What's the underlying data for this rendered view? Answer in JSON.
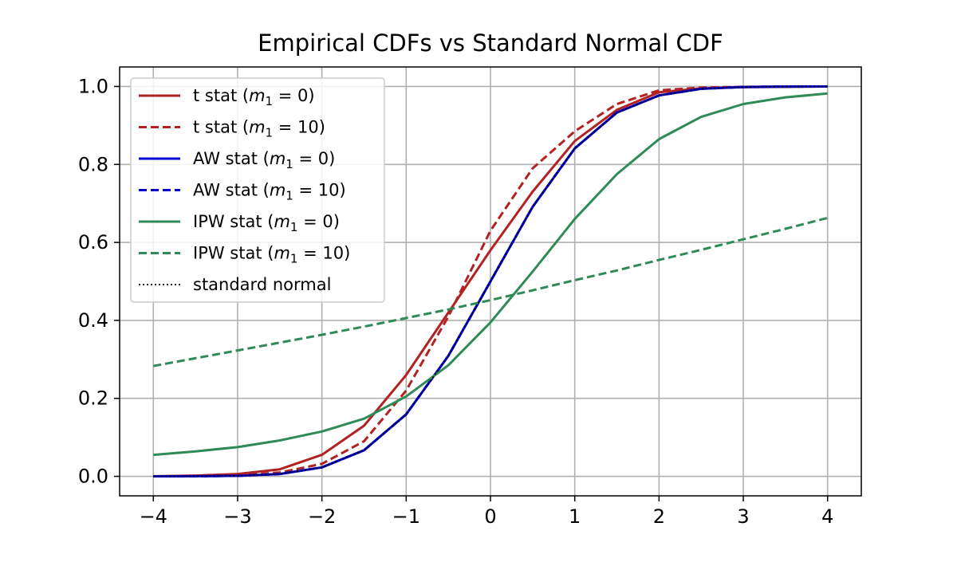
{
  "chart_data": {
    "type": "line",
    "title": "Empirical CDFs vs Standard Normal CDF",
    "xlabel": "",
    "ylabel": "",
    "xlim": [
      -4.4,
      4.4
    ],
    "ylim": [
      -0.05,
      1.05
    ],
    "grid": true,
    "legend_position": "upper-left",
    "x_ticks": [
      -4,
      -3,
      -2,
      -1,
      0,
      1,
      2,
      3,
      4
    ],
    "x_tick_labels": [
      "−4",
      "−3",
      "−2",
      "−1",
      "0",
      "1",
      "2",
      "3",
      "4"
    ],
    "y_ticks": [
      0.0,
      0.2,
      0.4,
      0.6,
      0.8,
      1.0
    ],
    "y_tick_labels": [
      "0.0",
      "0.2",
      "0.4",
      "0.6",
      "0.8",
      "1.0"
    ],
    "x": [
      -4,
      -3.5,
      -3,
      -2.5,
      -2,
      -1.5,
      -1,
      -0.5,
      0,
      0.5,
      1,
      1.5,
      2,
      2.5,
      3,
      3.5,
      4
    ],
    "series": [
      {
        "name": "t stat ($m_1 = 0$)",
        "label_prefix": "t stat (",
        "label_m": "m",
        "label_sub": "1",
        "label_eq": " = 0",
        "label_suffix": ")",
        "color": "#b22222",
        "style": "solid",
        "values": [
          0.0,
          0.002,
          0.006,
          0.018,
          0.055,
          0.13,
          0.26,
          0.42,
          0.58,
          0.73,
          0.86,
          0.94,
          0.985,
          0.995,
          0.998,
          0.999,
          1.0
        ]
      },
      {
        "name": "t stat ($m_1 = 10$)",
        "label_prefix": "t stat (",
        "label_m": "m",
        "label_sub": "1",
        "label_eq": " = 10",
        "label_suffix": ")",
        "color": "#b22222",
        "style": "dashed",
        "values": [
          0.0,
          0.001,
          0.003,
          0.01,
          0.032,
          0.09,
          0.22,
          0.41,
          0.63,
          0.79,
          0.885,
          0.955,
          0.99,
          0.997,
          0.999,
          0.9995,
          1.0
        ]
      },
      {
        "name": "AW stat ($m_1 = 0$)",
        "label_prefix": "AW stat (",
        "label_m": "m",
        "label_sub": "1",
        "label_eq": " = 0",
        "label_suffix": ")",
        "color": "#0000cd",
        "style": "solid",
        "values": [
          0.0,
          0.0002,
          0.0013,
          0.006,
          0.023,
          0.067,
          0.159,
          0.309,
          0.5,
          0.691,
          0.841,
          0.933,
          0.977,
          0.994,
          0.9987,
          0.9998,
          1.0
        ]
      },
      {
        "name": "AW stat ($m_1 = 10$)",
        "label_prefix": "AW stat (",
        "label_m": "m",
        "label_sub": "1",
        "label_eq": " = 10",
        "label_suffix": ")",
        "color": "#0000cd",
        "style": "dashed",
        "values": [
          0.0,
          0.0002,
          0.0013,
          0.006,
          0.023,
          0.067,
          0.159,
          0.309,
          0.5,
          0.691,
          0.841,
          0.933,
          0.977,
          0.994,
          0.9987,
          0.9998,
          1.0
        ]
      },
      {
        "name": "IPW stat ($m_1 = 0$)",
        "label_prefix": "IPW stat (",
        "label_m": "m",
        "label_sub": "1",
        "label_eq": " = 0",
        "label_suffix": ")",
        "color": "#2e8b57",
        "style": "solid",
        "values": [
          0.055,
          0.064,
          0.075,
          0.092,
          0.115,
          0.148,
          0.205,
          0.285,
          0.395,
          0.525,
          0.66,
          0.775,
          0.865,
          0.922,
          0.955,
          0.972,
          0.982
        ]
      },
      {
        "name": "IPW stat ($m_1 = 10$)",
        "label_prefix": "IPW stat (",
        "label_m": "m",
        "label_sub": "1",
        "label_eq": " = 10",
        "label_suffix": ")",
        "color": "#2e8b57",
        "style": "dashed",
        "values": [
          0.283,
          0.303,
          0.323,
          0.343,
          0.363,
          0.384,
          0.406,
          0.428,
          0.452,
          0.477,
          0.503,
          0.528,
          0.555,
          0.581,
          0.608,
          0.635,
          0.663
        ]
      },
      {
        "name": "standard normal",
        "label_prefix": "standard normal",
        "label_m": "",
        "label_sub": "",
        "label_eq": "",
        "label_suffix": "",
        "color": "#000000",
        "style": "dotted",
        "values": [
          3e-05,
          0.0002,
          0.0013,
          0.0062,
          0.0228,
          0.0668,
          0.1587,
          0.3085,
          0.5,
          0.6915,
          0.8413,
          0.9332,
          0.9772,
          0.9938,
          0.9987,
          0.9998,
          0.99997
        ]
      }
    ]
  }
}
